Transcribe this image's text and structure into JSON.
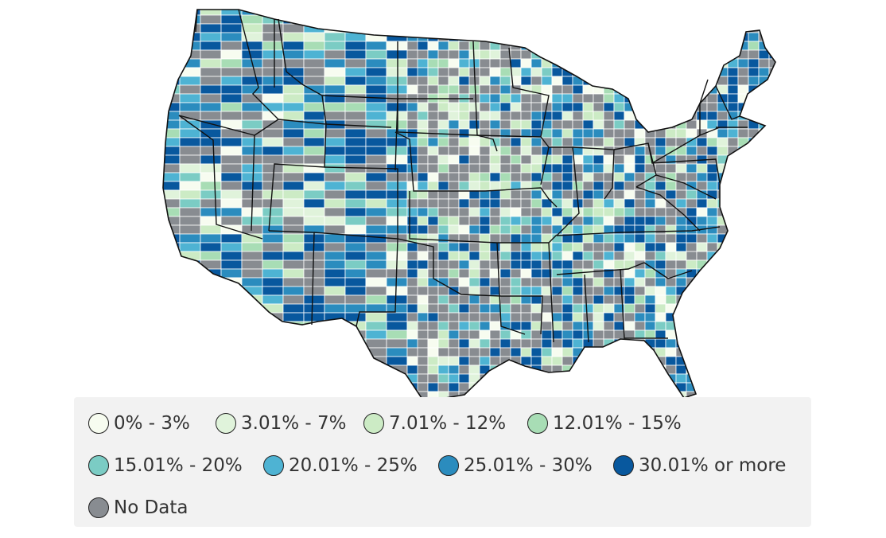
{
  "map": {
    "region": "contiguous-united-states",
    "granularity": "county",
    "county_border_color": "#ffffff",
    "state_border_color": "#111111"
  },
  "legend": {
    "items": [
      {
        "label": "0% - 3%",
        "color": "#f7fcf0"
      },
      {
        "label": "3.01% - 7%",
        "color": "#e0f3db"
      },
      {
        "label": "7.01% - 12%",
        "color": "#ccebc5"
      },
      {
        "label": "12.01% - 15%",
        "color": "#a8ddb5"
      },
      {
        "label": "15.01% - 20%",
        "color": "#7bccc4"
      },
      {
        "label": "20.01% - 25%",
        "color": "#4eb3d3"
      },
      {
        "label": "25.01% - 30%",
        "color": "#2b8cbe"
      },
      {
        "label": "30.01% or more",
        "color": "#08589e"
      },
      {
        "label": "No Data",
        "color": "#888c91"
      }
    ]
  }
}
